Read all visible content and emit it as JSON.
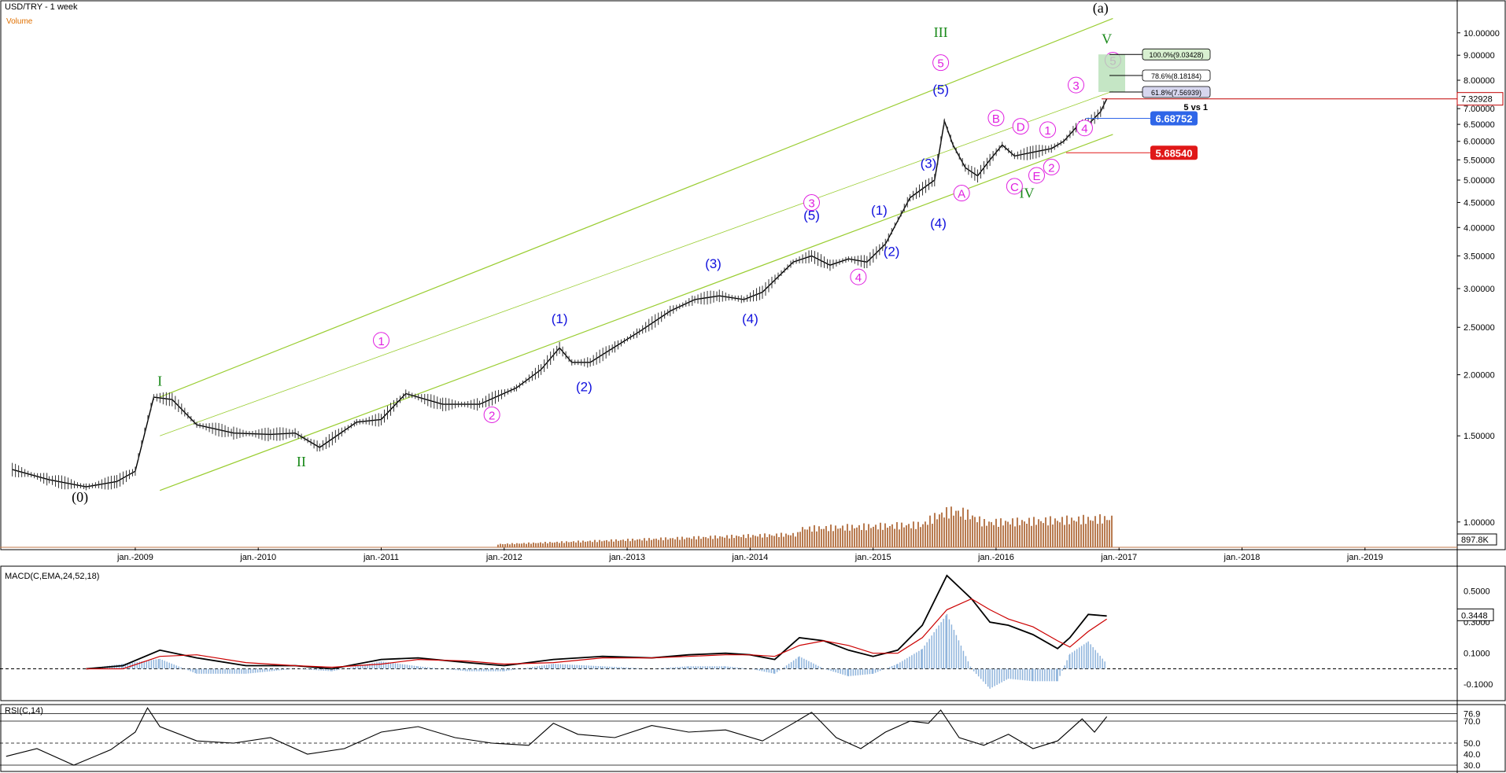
{
  "header": {
    "title": "USD/TRY - 1 week",
    "subtitle": "Volume"
  },
  "macd": {
    "title": "MACD(C,EMA,24,52,18)"
  },
  "rsi": {
    "title": "RSI(C,14)"
  },
  "colors": {
    "price": "#000000",
    "wave_green": "#1a8a1a",
    "wave_magenta": "#e020e0",
    "wave_blue": "#1010dd",
    "channel": "#9acd32",
    "volume": "#b06a3a",
    "macd_hist": "#8fb4dc",
    "signal": "#cc0000",
    "price_tag": "#c00000"
  },
  "chart_data": [
    {
      "type": "line",
      "title": "USD/TRY - 1 week",
      "scale": "log",
      "x_ticks": [
        "jan.-2009",
        "jan.-2010",
        "jan.-2011",
        "jan.-2012",
        "jan.-2013",
        "jan.-2014",
        "jan.-2015",
        "jan.-2016",
        "jan.-2017",
        "jan.-2018",
        "jan.-2019"
      ],
      "y_ticks": [
        "10.00000",
        "9.00000",
        "8.00000",
        "7.00000",
        "6.50000",
        "6.00000",
        "5.50000",
        "5.00000",
        "4.50000",
        "4.00000",
        "3.50000",
        "3.00000",
        "2.50000",
        "2.00000",
        "1.50000",
        "1.00000"
      ],
      "y_tick_values": [
        10,
        9,
        8,
        7,
        6.5,
        6,
        5.5,
        5,
        4.5,
        4,
        3.5,
        3,
        2.5,
        2,
        1.5,
        1
      ],
      "ylim": [
        0.97,
        11.5
      ],
      "xlim": [
        2007.9,
        2019.75
      ],
      "series": [
        {
          "x": [
            2008.0,
            2008.3,
            2008.6,
            2008.85,
            2009.0,
            2009.15,
            2009.3,
            2009.5,
            2009.8,
            2010.1,
            2010.3,
            2010.5,
            2010.8,
            2011.0,
            2011.2,
            2011.5,
            2011.8,
            2012.1,
            2012.3,
            2012.45,
            2012.55,
            2012.7,
            2012.9,
            2013.1,
            2013.35,
            2013.55,
            2013.75,
            2013.95,
            2014.1,
            2014.35,
            2014.5,
            2014.65,
            2014.8,
            2014.95,
            2015.1,
            2015.3,
            2015.5,
            2015.58,
            2015.65,
            2015.75,
            2015.85,
            2015.95,
            2016.05,
            2016.15,
            2016.3,
            2016.45,
            2016.55,
            2016.65,
            2016.75,
            2016.85,
            2016.9
          ],
          "y": [
            1.28,
            1.22,
            1.18,
            1.21,
            1.27,
            1.8,
            1.78,
            1.58,
            1.52,
            1.51,
            1.52,
            1.42,
            1.6,
            1.62,
            1.83,
            1.74,
            1.74,
            1.88,
            2.05,
            2.27,
            2.12,
            2.12,
            2.28,
            2.45,
            2.7,
            2.85,
            2.9,
            2.85,
            2.95,
            3.4,
            3.5,
            3.35,
            3.45,
            3.4,
            3.7,
            4.6,
            5.0,
            6.6,
            5.9,
            5.3,
            5.1,
            5.5,
            5.9,
            5.6,
            5.7,
            5.8,
            6.0,
            6.4,
            6.5,
            6.9,
            7.33
          ]
        }
      ],
      "annotations": {
        "waves_green": [
          {
            "label": "I",
            "x": 2009.2,
            "y": 1.9
          },
          {
            "label": "II",
            "x": 2010.35,
            "y": 1.3
          },
          {
            "label": "III",
            "x": 2015.55,
            "y": 9.8
          },
          {
            "label": "IV",
            "x": 2016.25,
            "y": 4.6
          },
          {
            "label": "V",
            "x": 2016.9,
            "y": 9.5
          }
        ],
        "waves_black": [
          {
            "label": "(0)",
            "x": 2008.55,
            "y": 1.1
          },
          {
            "label": "(a)",
            "x": 2016.85,
            "y": 11.0
          }
        ],
        "waves_magenta": [
          {
            "label": "1",
            "x": 2011.0,
            "y": 2.3
          },
          {
            "label": "2",
            "x": 2011.9,
            "y": 1.62
          },
          {
            "label": "3",
            "x": 2014.5,
            "y": 4.4
          },
          {
            "label": "4",
            "x": 2014.88,
            "y": 3.1
          },
          {
            "label": "5",
            "x": 2015.55,
            "y": 8.5
          },
          {
            "label": "A",
            "x": 2015.72,
            "y": 4.6
          },
          {
            "label": "B",
            "x": 2016.0,
            "y": 6.55
          },
          {
            "label": "C",
            "x": 2016.15,
            "y": 4.75
          },
          {
            "label": "D",
            "x": 2016.2,
            "y": 6.3
          },
          {
            "label": "E",
            "x": 2016.33,
            "y": 5.0
          },
          {
            "label": "1",
            "x": 2016.42,
            "y": 6.2
          },
          {
            "label": "2",
            "x": 2016.45,
            "y": 5.2
          },
          {
            "label": "3",
            "x": 2016.65,
            "y": 7.65
          },
          {
            "label": "4",
            "x": 2016.72,
            "y": 6.25
          },
          {
            "label": "5",
            "x": 2016.95,
            "y": 8.6
          }
        ],
        "waves_blue": [
          {
            "label": "(1)",
            "x": 2012.45,
            "y": 2.55
          },
          {
            "label": "(2)",
            "x": 2012.65,
            "y": 1.85
          },
          {
            "label": "(3)",
            "x": 2013.7,
            "y": 3.3
          },
          {
            "label": "(4)",
            "x": 2014.0,
            "y": 2.55
          },
          {
            "label": "(5)",
            "x": 2014.5,
            "y": 4.15
          },
          {
            "label": "(1)",
            "x": 2015.05,
            "y": 4.25
          },
          {
            "label": "(2)",
            "x": 2015.15,
            "y": 3.5
          },
          {
            "label": "(3)",
            "x": 2015.45,
            "y": 5.3
          },
          {
            "label": "(4)",
            "x": 2015.53,
            "y": 4.0
          },
          {
            "label": "(5)",
            "x": 2015.55,
            "y": 7.5
          }
        ],
        "fib_boxes": [
          {
            "text": "100.0%(9.03428)",
            "value": 9.03428
          },
          {
            "text": "78.6%(8.18184)",
            "value": 8.18184
          },
          {
            "text": "61.8%(7.56939)",
            "value": 7.56939
          }
        ],
        "note": "5 vs 1",
        "levels": [
          {
            "text": "6.68752",
            "value": 6.68752,
            "color": "#2f66e8"
          },
          {
            "text": "5.68540",
            "value": 5.6854,
            "color": "#e01818"
          }
        ],
        "last_price": {
          "text": "7.32928",
          "value": 7.32928
        },
        "volume_tag": "897.8K"
      }
    },
    {
      "type": "line",
      "title": "MACD(C,EMA,24,52,18)",
      "y_ticks": [
        "0.5000",
        "0.3000",
        "0.1000",
        "-0.1000"
      ],
      "y_tick_values": [
        0.5,
        0.3,
        0.1,
        -0.1
      ],
      "ylim": [
        -0.2,
        0.65
      ],
      "last_value": "0.3448",
      "series": [
        {
          "x": [
            2008.6,
            2008.9,
            2009.2,
            2009.5,
            2009.9,
            2010.3,
            2010.6,
            2011.0,
            2011.3,
            2011.7,
            2012.0,
            2012.4,
            2012.8,
            2013.2,
            2013.5,
            2013.8,
            2014.0,
            2014.2,
            2014.4,
            2014.6,
            2014.8,
            2015.0,
            2015.2,
            2015.4,
            2015.6,
            2015.8,
            2015.95,
            2016.1,
            2016.3,
            2016.5,
            2016.6,
            2016.75,
            2016.9
          ],
          "y": [
            0.0,
            0.02,
            0.12,
            0.07,
            0.02,
            0.02,
            0.0,
            0.06,
            0.07,
            0.04,
            0.02,
            0.06,
            0.08,
            0.07,
            0.09,
            0.1,
            0.09,
            0.06,
            0.2,
            0.18,
            0.12,
            0.08,
            0.12,
            0.28,
            0.6,
            0.45,
            0.3,
            0.28,
            0.22,
            0.13,
            0.2,
            0.35,
            0.34
          ]
        },
        {
          "x": [
            2008.6,
            2008.9,
            2009.2,
            2009.5,
            2009.9,
            2010.3,
            2010.6,
            2011.0,
            2011.3,
            2011.7,
            2012.0,
            2012.4,
            2012.8,
            2013.2,
            2013.5,
            2013.8,
            2014.0,
            2014.2,
            2014.4,
            2014.6,
            2014.8,
            2015.0,
            2015.2,
            2015.4,
            2015.6,
            2015.8,
            2015.95,
            2016.1,
            2016.3,
            2016.5,
            2016.6,
            2016.75,
            2016.9
          ],
          "y": [
            0.0,
            0.0,
            0.08,
            0.09,
            0.04,
            0.02,
            0.01,
            0.03,
            0.06,
            0.05,
            0.03,
            0.04,
            0.07,
            0.07,
            0.08,
            0.09,
            0.09,
            0.08,
            0.15,
            0.18,
            0.15,
            0.1,
            0.1,
            0.2,
            0.38,
            0.45,
            0.38,
            0.32,
            0.27,
            0.18,
            0.14,
            0.24,
            0.32
          ]
        }
      ]
    },
    {
      "type": "line",
      "title": "RSI(C,14)",
      "y_ticks": [
        "76.9",
        "70.0",
        "50.0",
        "30.0"
      ],
      "y_tick_values": [
        76.9,
        70,
        50,
        30
      ],
      "ylim": [
        25,
        85
      ],
      "extra_labels": [
        "40.0"
      ],
      "series": [
        {
          "x": [
            2007.95,
            2008.2,
            2008.5,
            2008.8,
            2009.0,
            2009.1,
            2009.2,
            2009.5,
            2009.8,
            2010.1,
            2010.4,
            2010.7,
            2011.0,
            2011.3,
            2011.6,
            2011.9,
            2012.2,
            2012.4,
            2012.6,
            2012.9,
            2013.2,
            2013.5,
            2013.8,
            2014.1,
            2014.35,
            2014.5,
            2014.7,
            2014.9,
            2015.1,
            2015.3,
            2015.45,
            2015.55,
            2015.7,
            2015.9,
            2016.1,
            2016.3,
            2016.5,
            2016.7,
            2016.8,
            2016.9
          ],
          "y": [
            38,
            45,
            30,
            44,
            60,
            82,
            65,
            52,
            50,
            55,
            40,
            45,
            60,
            65,
            55,
            50,
            48,
            68,
            58,
            55,
            66,
            60,
            62,
            52,
            68,
            78,
            55,
            45,
            60,
            70,
            68,
            80,
            55,
            48,
            58,
            45,
            52,
            72,
            60,
            74
          ]
        }
      ]
    }
  ]
}
